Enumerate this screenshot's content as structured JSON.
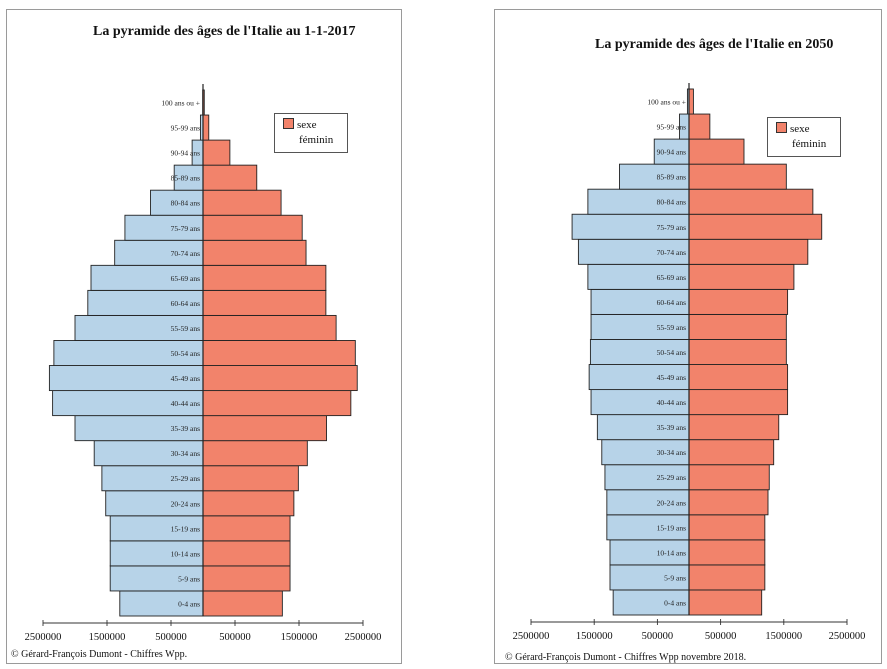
{
  "colors": {
    "male": "#b7d3e8",
    "female": "#f2836b",
    "outline": "#222222"
  },
  "chart_data": [
    {
      "type": "bar",
      "orientation": "horizontal",
      "layout": "population-pyramid",
      "title": "La pyramide des âges de l'Italie au 1-1-2017",
      "credit": "© Gérard-François Dumont - Chiffres Wpp.",
      "legend": {
        "label_line1": "sexe",
        "label_line2": "féminin",
        "placement": "top-right"
      },
      "categories": [
        "0-4 ans",
        "5-9 ans",
        "10-14 ans",
        "15-19 ans",
        "20-24 ans",
        "25-29 ans",
        "30-34 ans",
        "35-39 ans",
        "40-44 ans",
        "45-49 ans",
        "50-54 ans",
        "55-59 ans",
        "60-64 ans",
        "65-69 ans",
        "70-74 ans",
        "75-79 ans",
        "80-84 ans",
        "85-89 ans",
        "90-94 ans",
        "95-99 ans",
        "100 ans ou +"
      ],
      "series": [
        {
          "sex": "male",
          "values": [
            1300000,
            1450000,
            1450000,
            1450000,
            1520000,
            1580000,
            1700000,
            2000000,
            2350000,
            2400000,
            2330000,
            2000000,
            1800000,
            1750000,
            1380000,
            1220000,
            820000,
            450000,
            170000,
            40000,
            5000
          ]
        },
        {
          "sex": "female",
          "values": [
            1240000,
            1360000,
            1360000,
            1360000,
            1420000,
            1490000,
            1630000,
            1930000,
            2310000,
            2410000,
            2380000,
            2080000,
            1920000,
            1920000,
            1610000,
            1550000,
            1220000,
            840000,
            420000,
            90000,
            20000
          ]
        }
      ],
      "x_ticks": [
        "2500000",
        "1500000",
        "500000",
        "500000",
        "1500000",
        "2500000"
      ],
      "xlim": [
        -2500000,
        2500000
      ],
      "grid": false
    },
    {
      "type": "bar",
      "orientation": "horizontal",
      "layout": "population-pyramid",
      "title": "La pyramide des âges de l'Italie en 2050",
      "credit": "© Gérard-François Dumont - Chiffres Wpp novembre 2018.",
      "legend": {
        "label_line1": "sexe",
        "label_line2": "féminin",
        "placement": "top-right"
      },
      "categories": [
        "0-4 ans",
        "5-9 ans",
        "10-14 ans",
        "15-19 ans",
        "20-24 ans",
        "25-29 ans",
        "30-34 ans",
        "35-39 ans",
        "40-44 ans",
        "45-49 ans",
        "50-54 ans",
        "55-59 ans",
        "60-64 ans",
        "65-69 ans",
        "70-74 ans",
        "75-79 ans",
        "80-84 ans",
        "85-89 ans",
        "90-94 ans",
        "95-99 ans",
        "100 ans ou +"
      ],
      "series": [
        {
          "sex": "male",
          "values": [
            1200000,
            1250000,
            1250000,
            1300000,
            1300000,
            1330000,
            1380000,
            1450000,
            1550000,
            1580000,
            1560000,
            1550000,
            1550000,
            1600000,
            1750000,
            1850000,
            1600000,
            1100000,
            550000,
            150000,
            25000
          ]
        },
        {
          "sex": "female",
          "values": [
            1150000,
            1200000,
            1200000,
            1200000,
            1250000,
            1270000,
            1340000,
            1420000,
            1560000,
            1560000,
            1540000,
            1540000,
            1560000,
            1660000,
            1880000,
            2100000,
            1960000,
            1540000,
            870000,
            330000,
            70000
          ]
        }
      ],
      "x_ticks": [
        "2500000",
        "1500000",
        "500000",
        "500000",
        "1500000",
        "2500000"
      ],
      "xlim": [
        -2500000,
        2500000
      ],
      "grid": false
    }
  ]
}
